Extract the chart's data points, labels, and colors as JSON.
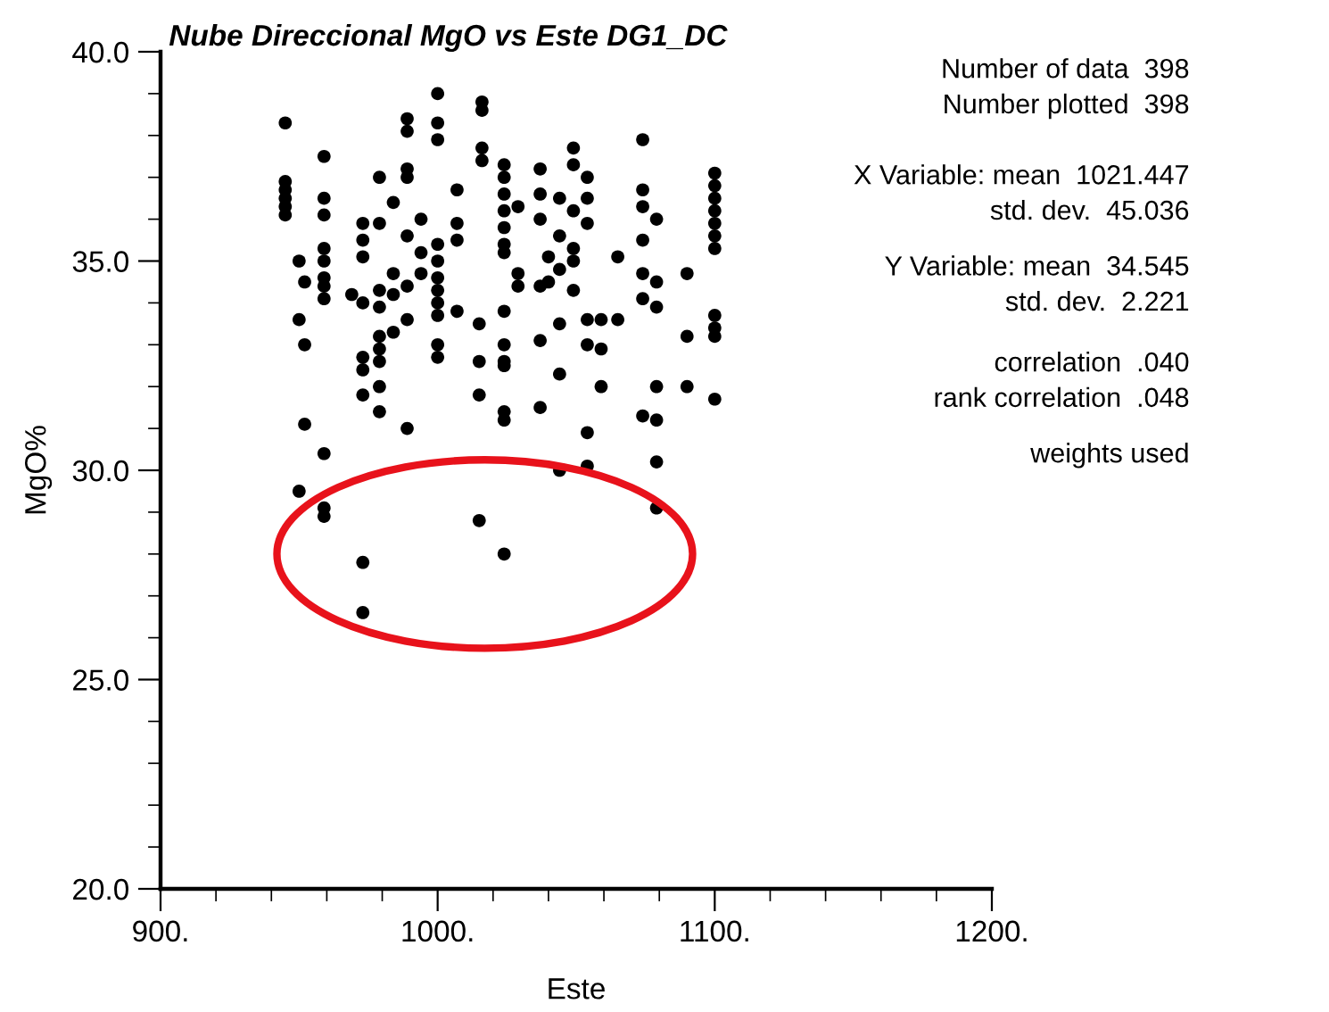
{
  "chart_data": {
    "type": "scatter",
    "title": "Nube Direccional MgO vs Este DG1_DC",
    "xlabel": "Este",
    "ylabel": "MgO%",
    "marker": "circle",
    "grid": false,
    "xlim": [
      900,
      1200
    ],
    "ylim": [
      20,
      40
    ],
    "xticks": [
      {
        "value": 900,
        "label": "900."
      },
      {
        "value": 920,
        "label": null
      },
      {
        "value": 940,
        "label": null
      },
      {
        "value": 960,
        "label": null
      },
      {
        "value": 980,
        "label": null
      },
      {
        "value": 1000,
        "label": "1000."
      },
      {
        "value": 1020,
        "label": null
      },
      {
        "value": 1040,
        "label": null
      },
      {
        "value": 1060,
        "label": null
      },
      {
        "value": 1080,
        "label": null
      },
      {
        "value": 1100,
        "label": "1100."
      },
      {
        "value": 1120,
        "label": null
      },
      {
        "value": 1140,
        "label": null
      },
      {
        "value": 1160,
        "label": null
      },
      {
        "value": 1180,
        "label": null
      },
      {
        "value": 1200,
        "label": "1200."
      }
    ],
    "yticks": [
      {
        "value": 20,
        "label": "20.0"
      },
      {
        "value": 21,
        "label": null
      },
      {
        "value": 22,
        "label": null
      },
      {
        "value": 23,
        "label": null
      },
      {
        "value": 24,
        "label": null
      },
      {
        "value": 25,
        "label": "25.0"
      },
      {
        "value": 26,
        "label": null
      },
      {
        "value": 27,
        "label": null
      },
      {
        "value": 28,
        "label": null
      },
      {
        "value": 29,
        "label": null
      },
      {
        "value": 30,
        "label": "30.0"
      },
      {
        "value": 31,
        "label": null
      },
      {
        "value": 32,
        "label": null
      },
      {
        "value": 33,
        "label": null
      },
      {
        "value": 34,
        "label": null
      },
      {
        "value": 35,
        "label": "35.0"
      },
      {
        "value": 36,
        "label": null
      },
      {
        "value": 37,
        "label": null
      },
      {
        "value": 38,
        "label": null
      },
      {
        "value": 39,
        "label": null
      },
      {
        "value": 40,
        "label": "40.0"
      }
    ],
    "annotations": [
      "Number of data  398",
      "Number plotted  398",
      "X Variable: mean  1021.447",
      "std. dev.  45.036",
      "Y Variable: mean  34.545",
      "std. dev.  2.221",
      "correlation  .040",
      "rank correlation  .048",
      "weights used"
    ],
    "series": [
      {
        "color": "#000000",
        "x": [
          945,
          945,
          945,
          945,
          945,
          945,
          950,
          950,
          950,
          952,
          952,
          952,
          959,
          959,
          959,
          959,
          959,
          959,
          959,
          959,
          959,
          959,
          959,
          969,
          973,
          973,
          973,
          973,
          973,
          973,
          973,
          973,
          973,
          979,
          979,
          979,
          979,
          979,
          979,
          979,
          979,
          979,
          984,
          984,
          984,
          984,
          989,
          989,
          989,
          989,
          989,
          989,
          989,
          989,
          994,
          994,
          994,
          1000,
          1000,
          1000,
          1000,
          1000,
          1000,
          1000,
          1000,
          1000,
          1000,
          1000,
          1007,
          1007,
          1007,
          1007,
          1015,
          1015,
          1015,
          1015,
          1016,
          1016,
          1016,
          1016,
          1024,
          1024,
          1024,
          1024,
          1024,
          1024,
          1024,
          1024,
          1024,
          1024,
          1024,
          1024,
          1024,
          1024,
          1029,
          1029,
          1029,
          1037,
          1037,
          1037,
          1037,
          1037,
          1037,
          1040,
          1040,
          1044,
          1044,
          1044,
          1044,
          1044,
          1044,
          1049,
          1049,
          1049,
          1049,
          1049,
          1049,
          1054,
          1054,
          1054,
          1054,
          1054,
          1054,
          1054,
          1059,
          1059,
          1059,
          1065,
          1065,
          1074,
          1074,
          1074,
          1074,
          1074,
          1074,
          1074,
          1079,
          1079,
          1079,
          1079,
          1079,
          1079,
          1079,
          1090,
          1090,
          1090,
          1100,
          1100,
          1100,
          1100,
          1100,
          1100,
          1100,
          1100,
          1100,
          1100,
          1100
        ],
        "values": [
          38.3,
          36.9,
          36.7,
          36.5,
          36.3,
          36.1,
          33.6,
          35.0,
          29.5,
          33.0,
          34.5,
          31.1,
          37.5,
          36.5,
          36.1,
          35.3,
          35.0,
          34.6,
          34.4,
          34.1,
          30.4,
          29.1,
          28.9,
          34.2,
          35.9,
          35.5,
          35.1,
          32.7,
          32.4,
          31.8,
          27.8,
          26.6,
          34.0,
          37.0,
          35.9,
          34.3,
          33.9,
          33.2,
          32.9,
          32.6,
          32.0,
          31.4,
          34.7,
          34.2,
          33.3,
          36.4,
          38.4,
          38.1,
          37.2,
          37.0,
          35.6,
          34.4,
          33.6,
          31.0,
          36.0,
          35.2,
          34.7,
          39.0,
          38.3,
          37.9,
          35.4,
          35.0,
          34.6,
          34.3,
          34.0,
          33.7,
          33.0,
          32.7,
          36.7,
          35.9,
          35.5,
          33.8,
          33.5,
          32.6,
          31.8,
          28.8,
          38.8,
          38.6,
          37.7,
          37.4,
          37.3,
          37.0,
          36.6,
          36.2,
          35.8,
          35.4,
          35.2,
          33.8,
          33.0,
          32.6,
          32.5,
          31.4,
          31.2,
          28.0,
          36.3,
          34.7,
          34.4,
          37.2,
          36.6,
          36.0,
          34.4,
          33.1,
          31.5,
          35.1,
          34.5,
          36.5,
          35.6,
          34.8,
          33.5,
          32.3,
          30.0,
          37.7,
          37.3,
          36.2,
          35.3,
          35.0,
          34.3,
          37.0,
          36.5,
          33.0,
          33.6,
          30.9,
          30.1,
          35.9,
          33.6,
          32.9,
          32.0,
          35.1,
          33.6,
          37.9,
          36.7,
          36.3,
          35.5,
          34.7,
          34.1,
          31.3,
          36.0,
          34.5,
          33.9,
          32.0,
          31.2,
          30.2,
          29.1,
          34.7,
          33.2,
          32.0,
          37.1,
          36.8,
          36.5,
          36.2,
          35.9,
          35.6,
          35.3,
          33.7,
          33.4,
          33.2,
          31.7
        ]
      }
    ]
  }
}
